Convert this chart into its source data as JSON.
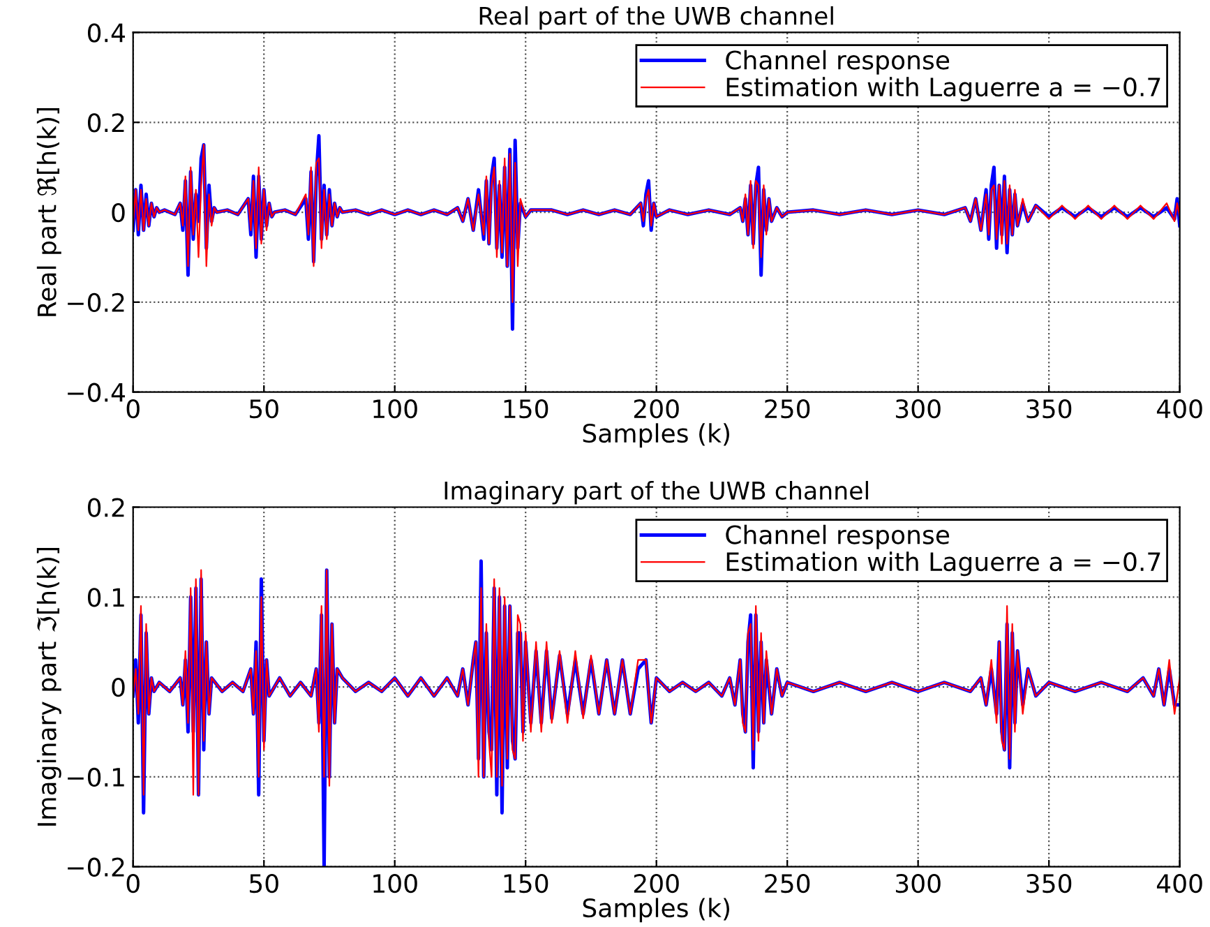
{
  "chart_data": [
    {
      "type": "line",
      "title": "Real part of the UWB channel",
      "xlabel": "Samples (k)",
      "ylabel": "Real part ℜ[h(k)]",
      "xlim": [
        0,
        400
      ],
      "ylim": [
        -0.4,
        0.4
      ],
      "xticks": [
        0,
        50,
        100,
        150,
        200,
        250,
        300,
        350,
        400
      ],
      "yticks": [
        {
          "value": -0.4,
          "label": "−0.4"
        },
        {
          "value": -0.2,
          "label": "−0.2"
        },
        0,
        0.2,
        0.4
      ],
      "grid": true,
      "legend": "top right",
      "line_style": "solid",
      "marker": "none",
      "series": [
        {
          "name": "Channel response",
          "color": "#0000ff",
          "x": [
            0,
            1,
            2,
            3,
            4,
            5,
            6,
            7,
            8,
            9,
            10,
            12,
            16,
            18,
            19,
            20,
            21,
            22,
            23,
            24,
            25,
            26,
            27,
            28,
            29,
            30,
            31,
            32,
            36,
            40,
            44,
            45,
            46,
            47,
            48,
            49,
            50,
            51,
            52,
            53,
            54,
            58,
            62,
            66,
            67,
            68,
            69,
            70,
            71,
            72,
            73,
            74,
            75,
            76,
            77,
            78,
            79,
            80,
            85,
            90,
            95,
            100,
            105,
            110,
            115,
            120,
            124,
            126,
            128,
            130,
            132,
            134,
            135,
            136,
            137,
            138,
            139,
            140,
            141,
            142,
            143,
            144,
            145,
            146,
            147,
            148,
            150,
            152,
            160,
            166,
            172,
            178,
            184,
            190,
            194,
            195,
            196,
            197,
            198,
            199,
            200,
            205,
            212,
            220,
            228,
            232,
            233,
            234,
            235,
            236,
            237,
            238,
            239,
            240,
            241,
            242,
            243,
            244,
            246,
            248,
            250,
            260,
            270,
            280,
            290,
            300,
            310,
            318,
            320,
            322,
            324,
            326,
            327,
            328,
            329,
            330,
            331,
            332,
            333,
            334,
            335,
            336,
            337,
            338,
            340,
            342,
            345,
            350,
            355,
            360,
            365,
            370,
            375,
            380,
            385,
            390,
            395,
            398,
            399,
            400
          ],
          "values": [
            -0.04,
            0.05,
            -0.05,
            0.06,
            -0.04,
            0.04,
            -0.03,
            0.02,
            -0.01,
            0.01,
            0,
            0.005,
            -0.005,
            0.02,
            -0.04,
            0.07,
            -0.14,
            0.09,
            -0.06,
            0.04,
            -0.02,
            0.12,
            0.15,
            -0.08,
            0.06,
            -0.02,
            0.01,
            0,
            0.005,
            -0.005,
            0.03,
            -0.05,
            0.08,
            -0.1,
            0.08,
            -0.06,
            0.05,
            -0.03,
            0.02,
            -0.01,
            0,
            0.005,
            -0.005,
            0.03,
            -0.06,
            0.09,
            -0.11,
            0.08,
            0.17,
            -0.06,
            0.06,
            -0.05,
            0.05,
            -0.03,
            0.02,
            -0.01,
            0.01,
            0,
            0.005,
            -0.005,
            0.005,
            -0.005,
            0.005,
            -0.005,
            0.005,
            -0.005,
            0.01,
            -0.02,
            0.03,
            -0.04,
            0.05,
            -0.06,
            0.07,
            -0.07,
            0.08,
            0.12,
            -0.08,
            0.06,
            -0.1,
            0.1,
            -0.12,
            0.14,
            -0.26,
            0.16,
            -0.08,
            0.02,
            -0.01,
            0.005,
            0.005,
            -0.005,
            0.005,
            -0.005,
            0.005,
            -0.005,
            0.02,
            -0.03,
            0.04,
            0.07,
            -0.04,
            0.02,
            -0.01,
            0.005,
            -0.005,
            0.005,
            -0.005,
            0.01,
            -0.02,
            0.03,
            -0.05,
            0.06,
            -0.07,
            0.06,
            0.1,
            -0.14,
            0.05,
            -0.04,
            0.03,
            -0.02,
            0.01,
            -0.01,
            0,
            0.005,
            -0.005,
            0.005,
            -0.005,
            0.005,
            -0.005,
            0.01,
            -0.02,
            0.03,
            -0.04,
            0.05,
            -0.06,
            0.06,
            0.1,
            -0.08,
            0.06,
            -0.05,
            0.08,
            -0.09,
            0.05,
            -0.05,
            0.04,
            -0.03,
            0.02,
            -0.02,
            0.015,
            -0.01,
            0.01,
            -0.01,
            0.01,
            -0.01,
            0.01,
            -0.01,
            0.01,
            -0.01,
            0.01,
            -0.015,
            0.03,
            -0.03
          ]
        },
        {
          "name": "Estimation with Laguerre a = −0.7",
          "color": "#ff0000",
          "x": [
            0,
            1,
            2,
            3,
            4,
            5,
            6,
            7,
            8,
            9,
            10,
            12,
            16,
            18,
            19,
            20,
            21,
            22,
            23,
            24,
            25,
            26,
            27,
            28,
            29,
            30,
            31,
            32,
            36,
            40,
            44,
            45,
            46,
            47,
            48,
            49,
            50,
            51,
            52,
            53,
            54,
            58,
            62,
            66,
            67,
            68,
            69,
            70,
            71,
            72,
            73,
            74,
            75,
            76,
            77,
            78,
            79,
            80,
            85,
            90,
            95,
            100,
            105,
            110,
            115,
            120,
            124,
            126,
            128,
            130,
            132,
            134,
            135,
            136,
            137,
            138,
            139,
            140,
            141,
            142,
            143,
            144,
            145,
            146,
            147,
            148,
            150,
            152,
            160,
            166,
            172,
            178,
            184,
            190,
            194,
            195,
            196,
            197,
            198,
            199,
            200,
            205,
            212,
            220,
            228,
            232,
            233,
            234,
            235,
            236,
            237,
            238,
            239,
            240,
            241,
            242,
            243,
            244,
            246,
            248,
            250,
            260,
            270,
            280,
            290,
            300,
            310,
            318,
            320,
            322,
            324,
            326,
            327,
            328,
            329,
            330,
            331,
            332,
            333,
            334,
            335,
            336,
            337,
            338,
            340,
            342,
            345,
            350,
            355,
            360,
            365,
            370,
            375,
            380,
            385,
            390,
            395,
            398,
            399,
            400
          ],
          "values": [
            -0.03,
            0.05,
            -0.04,
            0.05,
            -0.04,
            0.03,
            -0.03,
            0.02,
            -0.01,
            0.01,
            0,
            0.005,
            -0.005,
            0.02,
            -0.03,
            0.08,
            -0.12,
            0.1,
            -0.05,
            0.05,
            -0.1,
            0.06,
            0.15,
            -0.12,
            0.04,
            -0.03,
            0.01,
            0,
            0.005,
            -0.005,
            0.03,
            -0.04,
            0.07,
            -0.08,
            0.1,
            -0.07,
            0.05,
            -0.04,
            0.02,
            -0.01,
            0,
            0.005,
            -0.005,
            0.04,
            -0.05,
            0.1,
            -0.12,
            0.11,
            0.12,
            -0.08,
            0.05,
            -0.06,
            0.04,
            -0.03,
            0.02,
            -0.01,
            0.01,
            0,
            0.005,
            -0.005,
            0.005,
            -0.005,
            0.005,
            -0.005,
            0.005,
            -0.005,
            0.01,
            -0.02,
            0.03,
            -0.04,
            0.04,
            -0.05,
            0.08,
            -0.07,
            0.06,
            0.1,
            -0.1,
            0.07,
            -0.09,
            0.12,
            -0.12,
            0.13,
            -0.2,
            0.11,
            -0.12,
            0.03,
            -0.01,
            0.005,
            0.005,
            -0.005,
            0.005,
            -0.005,
            0.005,
            -0.005,
            0.02,
            -0.02,
            0.03,
            0.05,
            -0.03,
            0.02,
            -0.01,
            0.005,
            -0.005,
            0.005,
            -0.005,
            0.01,
            -0.02,
            0.04,
            -0.05,
            0.07,
            -0.08,
            0.07,
            0.06,
            -0.1,
            0.06,
            -0.05,
            0.03,
            -0.02,
            0.01,
            -0.01,
            0,
            0.005,
            -0.005,
            0.005,
            -0.005,
            0.005,
            -0.005,
            0.01,
            -0.02,
            0.03,
            -0.04,
            0.04,
            -0.05,
            0.05,
            0.06,
            -0.06,
            0.06,
            -0.07,
            0.07,
            -0.07,
            0.06,
            -0.05,
            0.05,
            -0.03,
            0.03,
            -0.02,
            0.015,
            -0.015,
            0.015,
            -0.015,
            0.015,
            -0.015,
            0.015,
            -0.015,
            0.015,
            -0.015,
            0.02,
            -0.02,
            0.02,
            -0.01
          ]
        }
      ]
    },
    {
      "type": "line",
      "title": "Imaginary part of the UWB channel",
      "xlabel": "Samples (k)",
      "ylabel": "Imaginary part ℑ[h(k)]",
      "xlim": [
        0,
        400
      ],
      "ylim": [
        -0.2,
        0.2
      ],
      "xticks": [
        0,
        50,
        100,
        150,
        200,
        250,
        300,
        350,
        400
      ],
      "yticks": [
        {
          "value": -0.2,
          "label": "−0.2"
        },
        {
          "value": -0.1,
          "label": "−0.1"
        },
        0,
        0.1,
        0.2
      ],
      "grid": true,
      "legend": "top right",
      "line_style": "solid",
      "marker": "none",
      "series": [
        {
          "name": "Channel response",
          "color": "#0000ff",
          "x": [
            0,
            1,
            2,
            3,
            4,
            5,
            6,
            7,
            8,
            10,
            14,
            18,
            19,
            20,
            21,
            22,
            23,
            24,
            25,
            26,
            27,
            28,
            29,
            30,
            34,
            38,
            42,
            45,
            46,
            47,
            48,
            49,
            50,
            51,
            52,
            56,
            60,
            64,
            68,
            70,
            71,
            72,
            73,
            74,
            75,
            76,
            77,
            78,
            80,
            85,
            90,
            95,
            100,
            105,
            110,
            115,
            120,
            124,
            126,
            128,
            130,
            131,
            132,
            133,
            134,
            135,
            136,
            137,
            138,
            139,
            140,
            141,
            142,
            143,
            144,
            145,
            146,
            147,
            148,
            149,
            150,
            152,
            154,
            156,
            158,
            160,
            163,
            166,
            169,
            172,
            175,
            178,
            181,
            184,
            187,
            190,
            193,
            196,
            198,
            200,
            205,
            210,
            215,
            220,
            225,
            228,
            230,
            232,
            233,
            234,
            235,
            236,
            237,
            238,
            239,
            240,
            241,
            242,
            244,
            246,
            248,
            250,
            260,
            270,
            280,
            290,
            300,
            310,
            320,
            324,
            326,
            328,
            330,
            331,
            332,
            333,
            334,
            335,
            336,
            337,
            338,
            340,
            342,
            345,
            350,
            360,
            370,
            380,
            386,
            390,
            392,
            394,
            396,
            398,
            400
          ],
          "values": [
            -0.01,
            0.03,
            -0.04,
            0.08,
            -0.14,
            0.06,
            -0.03,
            0.01,
            -0.005,
            0.005,
            -0.005,
            0.01,
            -0.02,
            0.03,
            -0.05,
            0.1,
            -0.05,
            0.11,
            -0.12,
            0.12,
            -0.07,
            0.05,
            -0.03,
            0.01,
            -0.005,
            0.005,
            -0.005,
            0.02,
            -0.03,
            0.05,
            -0.12,
            0.12,
            -0.06,
            0.03,
            -0.01,
            0.01,
            -0.01,
            0.005,
            -0.01,
            0.02,
            -0.04,
            0.08,
            -0.2,
            0.13,
            -0.1,
            0.07,
            -0.04,
            0.02,
            0.01,
            -0.005,
            0.005,
            -0.005,
            0.01,
            -0.01,
            0.01,
            -0.01,
            0.01,
            -0.01,
            0.02,
            -0.02,
            0.03,
            0.05,
            -0.08,
            0.14,
            -0.1,
            0.06,
            -0.05,
            -0.07,
            0.11,
            -0.12,
            0.1,
            -0.14,
            0.09,
            -0.09,
            0.09,
            -0.06,
            -0.08,
            0.06,
            0.06,
            -0.05,
            0.05,
            -0.04,
            0.04,
            -0.04,
            0.04,
            -0.035,
            0.035,
            -0.03,
            0.03,
            -0.03,
            0.03,
            -0.03,
            0.03,
            -0.03,
            0.03,
            -0.03,
            0.02,
            0.03,
            -0.04,
            0.01,
            -0.005,
            0.005,
            -0.005,
            0.005,
            -0.01,
            0.01,
            -0.02,
            0.03,
            -0.03,
            -0.05,
            0.05,
            0.08,
            -0.09,
            0.08,
            -0.05,
            0.05,
            -0.04,
            0.03,
            -0.03,
            0.02,
            -0.01,
            0.005,
            -0.005,
            0.005,
            -0.005,
            0.005,
            -0.005,
            0.005,
            -0.005,
            0.01,
            -0.02,
            0.02,
            -0.03,
            0.05,
            -0.05,
            -0.07,
            0.07,
            -0.09,
            0.06,
            -0.04,
            0.04,
            -0.02,
            0.02,
            -0.01,
            0.005,
            -0.005,
            0.005,
            -0.005,
            0.01,
            -0.01,
            0.02,
            -0.02,
            0.02,
            -0.02,
            -0.02
          ]
        },
        {
          "name": "Estimation with Laguerre a = −0.7",
          "color": "#ff0000",
          "x": [
            0,
            1,
            2,
            3,
            4,
            5,
            6,
            7,
            8,
            10,
            14,
            18,
            19,
            20,
            21,
            22,
            23,
            24,
            25,
            26,
            27,
            28,
            29,
            30,
            34,
            38,
            42,
            45,
            46,
            47,
            48,
            49,
            50,
            51,
            52,
            56,
            60,
            64,
            68,
            70,
            71,
            72,
            73,
            74,
            75,
            76,
            77,
            78,
            80,
            85,
            90,
            95,
            100,
            105,
            110,
            115,
            120,
            124,
            126,
            128,
            130,
            131,
            132,
            133,
            134,
            135,
            136,
            137,
            138,
            139,
            140,
            141,
            142,
            143,
            144,
            145,
            146,
            147,
            148,
            149,
            150,
            152,
            154,
            156,
            158,
            160,
            163,
            166,
            169,
            172,
            175,
            178,
            181,
            184,
            187,
            190,
            193,
            196,
            198,
            200,
            205,
            210,
            215,
            220,
            225,
            228,
            230,
            232,
            233,
            234,
            235,
            236,
            237,
            238,
            239,
            240,
            241,
            242,
            244,
            246,
            248,
            250,
            260,
            270,
            280,
            290,
            300,
            310,
            320,
            324,
            326,
            328,
            330,
            331,
            332,
            333,
            334,
            335,
            336,
            337,
            338,
            340,
            342,
            345,
            350,
            360,
            370,
            380,
            386,
            390,
            392,
            394,
            396,
            398,
            400
          ],
          "values": [
            -0.01,
            0.02,
            -0.03,
            0.09,
            -0.12,
            0.07,
            -0.03,
            0.01,
            -0.005,
            0.005,
            -0.005,
            0.01,
            -0.02,
            0.04,
            -0.04,
            0.11,
            -0.12,
            0.12,
            -0.12,
            0.13,
            -0.06,
            0.05,
            -0.03,
            0.01,
            -0.005,
            0.005,
            -0.005,
            0.02,
            -0.03,
            0.04,
            -0.1,
            0.1,
            -0.07,
            0.03,
            -0.01,
            0.01,
            -0.01,
            0.005,
            -0.01,
            0.02,
            -0.05,
            0.09,
            -0.1,
            0.13,
            -0.11,
            0.07,
            -0.04,
            0.02,
            0.01,
            -0.005,
            0.005,
            -0.005,
            0.01,
            -0.01,
            0.01,
            -0.01,
            0.01,
            -0.01,
            0.02,
            -0.02,
            0.03,
            0.05,
            -0.1,
            0.11,
            -0.1,
            0.07,
            -0.06,
            -0.1,
            0.12,
            -0.1,
            0.11,
            -0.11,
            0.1,
            -0.08,
            0.09,
            -0.07,
            -0.08,
            0.08,
            0.07,
            -0.06,
            0.06,
            -0.05,
            0.05,
            -0.05,
            0.05,
            -0.04,
            0.04,
            -0.04,
            0.04,
            -0.035,
            0.035,
            -0.03,
            0.03,
            -0.03,
            0.03,
            -0.03,
            0.03,
            0.03,
            -0.04,
            0.01,
            -0.005,
            0.005,
            -0.005,
            0.005,
            -0.01,
            0.01,
            -0.02,
            0.03,
            -0.04,
            -0.05,
            0.06,
            0.07,
            -0.07,
            0.09,
            -0.06,
            0.06,
            -0.04,
            0.04,
            -0.03,
            0.02,
            -0.01,
            0.005,
            -0.005,
            0.005,
            -0.005,
            0.005,
            -0.005,
            0.005,
            -0.005,
            0.01,
            -0.02,
            0.03,
            -0.04,
            0.05,
            -0.06,
            -0.07,
            0.09,
            -0.08,
            0.07,
            -0.05,
            0.04,
            -0.03,
            0.02,
            -0.01,
            0.005,
            -0.005,
            0.005,
            -0.005,
            0.01,
            -0.01,
            0.02,
            -0.02,
            0.03,
            -0.03,
            0.01
          ]
        }
      ]
    }
  ]
}
